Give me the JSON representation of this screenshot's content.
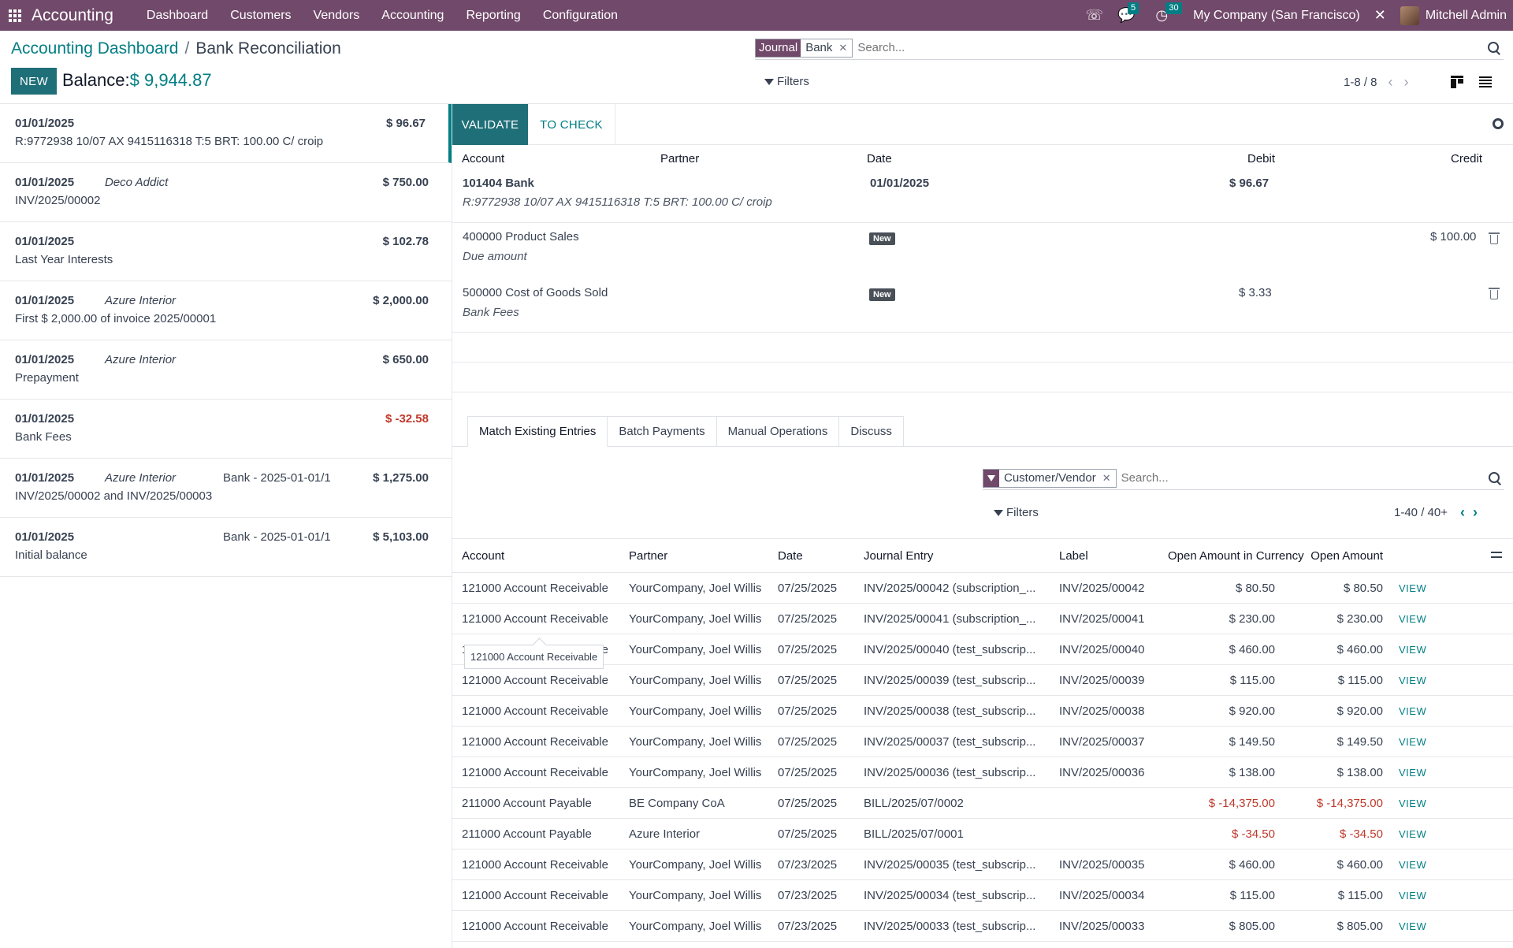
{
  "navbar": {
    "brand": "Accounting",
    "menu": [
      "Dashboard",
      "Customers",
      "Vendors",
      "Accounting",
      "Reporting",
      "Configuration"
    ],
    "messages_count": "5",
    "activities_count": "30",
    "company": "My Company (San Francisco)",
    "user": "Mitchell Admin"
  },
  "breadcrumb": {
    "parent": "Accounting Dashboard",
    "separator": "/",
    "current": "Bank Reconciliation"
  },
  "new_button": "NEW",
  "balance": {
    "label": "Balance:",
    "amount": "$ 9,944.87"
  },
  "search": {
    "facet_label": "Journal",
    "facet_value": "Bank",
    "placeholder": "Search...",
    "filters_label": "Filters",
    "pager": "1-8 / 8"
  },
  "statement_lines": [
    {
      "date": "01/01/2025",
      "partner": "",
      "ref": "",
      "amount": "$ 96.67",
      "label": "R:9772938 10/07 AX 9415116318 T:5 BRT: 100.00 C/ croip",
      "negative": false,
      "active": true
    },
    {
      "date": "01/01/2025",
      "partner": "Deco Addict",
      "ref": "",
      "amount": "$ 750.00",
      "label": "INV/2025/00002",
      "negative": false
    },
    {
      "date": "01/01/2025",
      "partner": "",
      "ref": "",
      "amount": "$ 102.78",
      "label": "Last Year Interests",
      "negative": false
    },
    {
      "date": "01/01/2025",
      "partner": "Azure Interior",
      "ref": "",
      "amount": "$ 2,000.00",
      "label": "First $ 2,000.00 of invoice 2025/00001",
      "negative": false
    },
    {
      "date": "01/01/2025",
      "partner": "Azure Interior",
      "ref": "",
      "amount": "$ 650.00",
      "label": "Prepayment",
      "negative": false
    },
    {
      "date": "01/01/2025",
      "partner": "",
      "ref": "",
      "amount": "$ -32.58",
      "label": "Bank Fees",
      "negative": true
    },
    {
      "date": "01/01/2025",
      "partner": "Azure Interior",
      "ref": "Bank - 2025-01-01/1",
      "amount": "$ 1,275.00",
      "label": "INV/2025/00002 and INV/2025/00003",
      "negative": false
    },
    {
      "date": "01/01/2025",
      "partner": "",
      "ref": "Bank - 2025-01-01/1",
      "amount": "$ 5,103.00",
      "label": "Initial balance",
      "negative": false
    }
  ],
  "actions": {
    "validate": "VALIDATE",
    "to_check": "TO CHECK"
  },
  "entries": {
    "headers": {
      "account": "Account",
      "partner": "Partner",
      "date": "Date",
      "debit": "Debit",
      "credit": "Credit"
    },
    "bank_line": {
      "account": "101404 Bank",
      "label": "R:9772938 10/07 AX 9415116318 T:5 BRT: 100.00 C/ croip",
      "date": "01/01/2025",
      "debit": "$ 96.67"
    },
    "line2": {
      "account": "400000 Product Sales",
      "label": "Due amount",
      "tag": "New",
      "credit": "$ 100.00"
    },
    "line3": {
      "account": "500000 Cost of Goods Sold",
      "label": "Bank Fees",
      "tag": "New",
      "debit": "$ 3.33"
    }
  },
  "notebook": {
    "tabs": [
      "Match Existing Entries",
      "Batch Payments",
      "Manual Operations",
      "Discuss"
    ],
    "facet_value": "Customer/Vendor",
    "placeholder": "Search...",
    "filters_label": "Filters",
    "pager": "1-40 / 40+"
  },
  "match_table": {
    "headers": [
      "Account",
      "Partner",
      "Date",
      "Journal Entry",
      "Label",
      "Open Amount in Currency",
      "Open Amount"
    ],
    "view_label": "VIEW",
    "rows": [
      {
        "account": "121000 Account Receivable",
        "partner": "YourCompany, Joel Willis",
        "date": "07/25/2025",
        "entry": "INV/2025/00042 (subscription_...",
        "label": "INV/2025/00042",
        "amt_cur": "$ 80.50",
        "amt": "$ 80.50",
        "negative": false
      },
      {
        "account": "121000 Account Receivable",
        "partner": "YourCompany, Joel Willis",
        "date": "07/25/2025",
        "entry": "INV/2025/00041 (subscription_...",
        "label": "INV/2025/00041",
        "amt_cur": "$ 230.00",
        "amt": "$ 230.00",
        "negative": false
      },
      {
        "account": "121000 Account Receivable",
        "partner": "YourCompany, Joel Willis",
        "date": "07/25/2025",
        "entry": "INV/2025/00040 (test_subscrip...",
        "label": "INV/2025/00040",
        "amt_cur": "$ 460.00",
        "amt": "$ 460.00",
        "negative": false
      },
      {
        "account": "121000 Account Receivable",
        "partner": "YourCompany, Joel Willis",
        "date": "07/25/2025",
        "entry": "INV/2025/00039 (test_subscrip...",
        "label": "INV/2025/00039",
        "amt_cur": "$ 115.00",
        "amt": "$ 115.00",
        "negative": false
      },
      {
        "account": "121000 Account Receivable",
        "partner": "YourCompany, Joel Willis",
        "date": "07/25/2025",
        "entry": "INV/2025/00038 (test_subscrip...",
        "label": "INV/2025/00038",
        "amt_cur": "$ 920.00",
        "amt": "$ 920.00",
        "negative": false
      },
      {
        "account": "121000 Account Receivable",
        "partner": "YourCompany, Joel Willis",
        "date": "07/25/2025",
        "entry": "INV/2025/00037 (test_subscrip...",
        "label": "INV/2025/00037",
        "amt_cur": "$ 149.50",
        "amt": "$ 149.50",
        "negative": false
      },
      {
        "account": "121000 Account Receivable",
        "partner": "YourCompany, Joel Willis",
        "date": "07/25/2025",
        "entry": "INV/2025/00036 (test_subscrip...",
        "label": "INV/2025/00036",
        "amt_cur": "$ 138.00",
        "amt": "$ 138.00",
        "negative": false
      },
      {
        "account": "211000 Account Payable",
        "partner": "BE Company CoA",
        "date": "07/25/2025",
        "entry": "BILL/2025/07/0002",
        "label": "",
        "amt_cur": "$ -14,375.00",
        "amt": "$ -14,375.00",
        "negative": true
      },
      {
        "account": "211000 Account Payable",
        "partner": "Azure Interior",
        "date": "07/25/2025",
        "entry": "BILL/2025/07/0001",
        "label": "",
        "amt_cur": "$ -34.50",
        "amt": "$ -34.50",
        "negative": true
      },
      {
        "account": "121000 Account Receivable",
        "partner": "YourCompany, Joel Willis",
        "date": "07/23/2025",
        "entry": "INV/2025/00035 (test_subscrip...",
        "label": "INV/2025/00035",
        "amt_cur": "$ 460.00",
        "amt": "$ 460.00",
        "negative": false
      },
      {
        "account": "121000 Account Receivable",
        "partner": "YourCompany, Joel Willis",
        "date": "07/23/2025",
        "entry": "INV/2025/00034 (test_subscrip...",
        "label": "INV/2025/00034",
        "amt_cur": "$ 115.00",
        "amt": "$ 115.00",
        "negative": false
      },
      {
        "account": "121000 Account Receivable",
        "partner": "YourCompany, Joel Willis",
        "date": "07/23/2025",
        "entry": "INV/2025/00033 (test_subscrip...",
        "label": "INV/2025/00033",
        "amt_cur": "$ 805.00",
        "amt": "$ 805.00",
        "negative": false
      }
    ]
  },
  "tooltip": "121000 Account Receivable"
}
